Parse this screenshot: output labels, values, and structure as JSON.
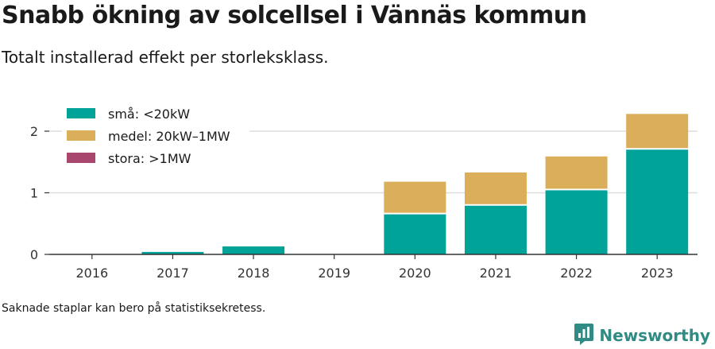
{
  "header": {
    "title": "Snabb ökning av solcellsel i Vännäs kommun",
    "subtitle": "Totalt installerad effekt per storleksklass."
  },
  "footer": {
    "note": "Saknade staplar kan bero på statistiksekretess.",
    "brand": "Newsworthy",
    "brand_icon": "newsworthy-logo-icon"
  },
  "colors": {
    "small": "#00a398",
    "medium": "#dbae5a",
    "large": "#a8466e",
    "grid": "#dddddd",
    "axis": "#333333",
    "brand": "#2f8b84"
  },
  "chart_data": {
    "type": "bar",
    "stacked": true,
    "title": "Snabb ökning av solcellsel i Vännäs kommun",
    "subtitle": "Totalt installerad effekt per storleksklass.",
    "xlabel": "",
    "ylabel": "",
    "ylim": [
      0,
      2.3
    ],
    "yticks": [
      0,
      1,
      2
    ],
    "grid": true,
    "legend_position": "top-left",
    "categories": [
      "2016",
      "2017",
      "2018",
      "2019",
      "2020",
      "2021",
      "2022",
      "2023"
    ],
    "series": [
      {
        "name": "små: <20kW",
        "color": "#00a398",
        "values": [
          0,
          0.04,
          0.13,
          0,
          0.65,
          0.79,
          1.04,
          1.7
        ]
      },
      {
        "name": "medel: 20kW–1MW",
        "color": "#dbae5a",
        "values": [
          0,
          0,
          0,
          0,
          0.53,
          0.54,
          0.55,
          0.58
        ]
      },
      {
        "name": "stora: >1MW",
        "color": "#a8466e",
        "values": [
          0,
          0,
          0,
          0,
          0,
          0,
          0,
          0
        ]
      }
    ]
  }
}
